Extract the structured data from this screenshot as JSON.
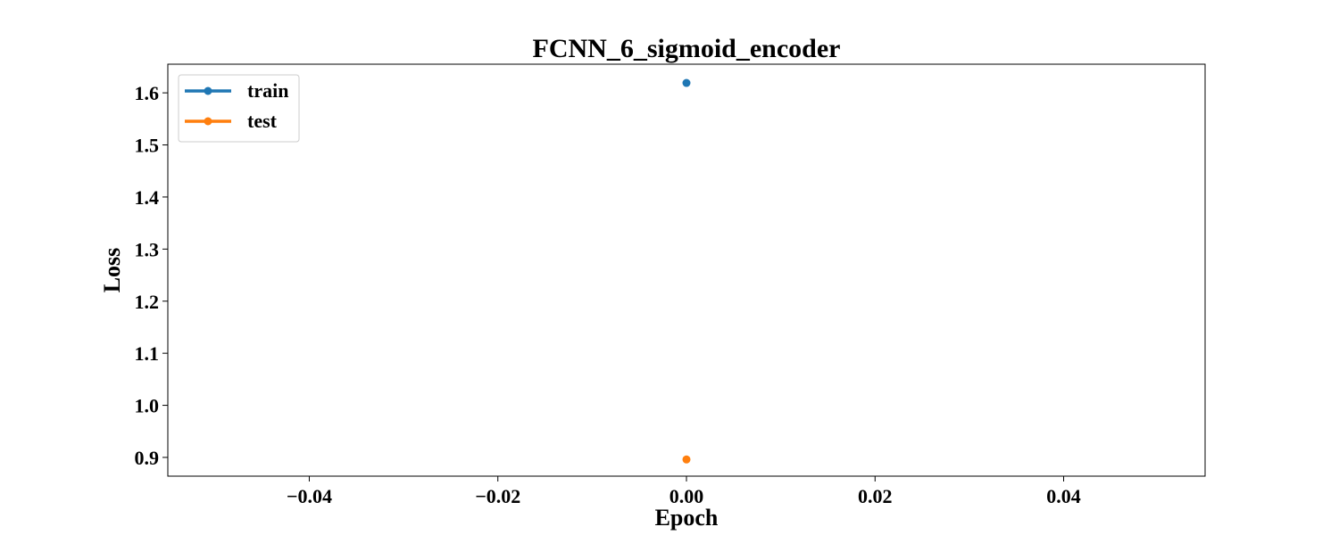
{
  "chart_data": {
    "type": "line",
    "title": "FCNN_6_sigmoid_encoder",
    "xlabel": "Epoch",
    "ylabel": "Loss",
    "xlim": [
      -0.055,
      0.055
    ],
    "ylim": [
      0.864,
      1.655
    ],
    "x_ticks": [
      -0.04,
      -0.02,
      0.0,
      0.02,
      0.04
    ],
    "x_tick_labels": [
      "−0.04",
      "−0.02",
      "0.00",
      "0.02",
      "0.04"
    ],
    "y_ticks": [
      0.9,
      1.0,
      1.1,
      1.2,
      1.3,
      1.4,
      1.5,
      1.6
    ],
    "y_tick_labels": [
      "0.9",
      "1.0",
      "1.1",
      "1.2",
      "1.3",
      "1.4",
      "1.5",
      "1.6"
    ],
    "grid": false,
    "legend_position": "top-left",
    "series": [
      {
        "name": "train",
        "color": "#1f77b4",
        "x": [
          0.0
        ],
        "y": [
          1.619
        ]
      },
      {
        "name": "test",
        "color": "#ff7f0e",
        "x": [
          0.0
        ],
        "y": [
          0.896
        ]
      }
    ]
  }
}
